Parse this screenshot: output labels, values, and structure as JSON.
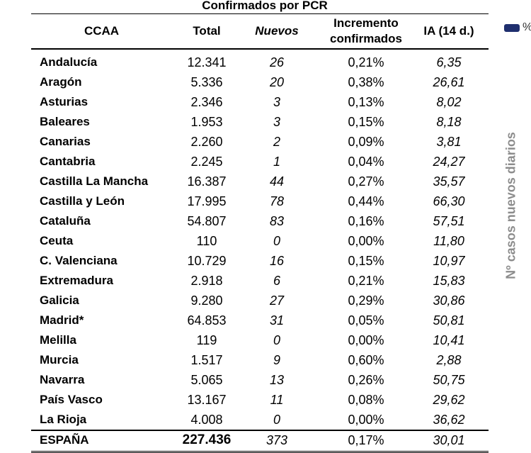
{
  "title": "Confirmados por PCR",
  "headers": {
    "ccaa": "CCAA",
    "total": "Total",
    "nuevos": "Nuevos",
    "incremento_line1": "Incremento",
    "incremento_line2": "confirmados",
    "ia": "IA (14 d.)"
  },
  "rows": [
    {
      "ccaa": "Andalucía",
      "total": "12.341",
      "nuevos": "26",
      "incremento": "0,21%",
      "ia": "6,35"
    },
    {
      "ccaa": "Aragón",
      "total": "5.336",
      "nuevos": "20",
      "incremento": "0,38%",
      "ia": "26,61"
    },
    {
      "ccaa": "Asturias",
      "total": "2.346",
      "nuevos": "3",
      "incremento": "0,13%",
      "ia": "8,02"
    },
    {
      "ccaa": "Baleares",
      "total": "1.953",
      "nuevos": "3",
      "incremento": "0,15%",
      "ia": "8,18"
    },
    {
      "ccaa": "Canarias",
      "total": "2.260",
      "nuevos": "2",
      "incremento": "0,09%",
      "ia": "3,81"
    },
    {
      "ccaa": "Cantabria",
      "total": "2.245",
      "nuevos": "1",
      "incremento": "0,04%",
      "ia": "24,27"
    },
    {
      "ccaa": "Castilla La Mancha",
      "total": "16.387",
      "nuevos": "44",
      "incremento": "0,27%",
      "ia": "35,57"
    },
    {
      "ccaa": "Castilla y León",
      "total": "17.995",
      "nuevos": "78",
      "incremento": "0,44%",
      "ia": "66,30"
    },
    {
      "ccaa": "Cataluña",
      "total": "54.807",
      "nuevos": "83",
      "incremento": "0,16%",
      "ia": "57,51"
    },
    {
      "ccaa": "Ceuta",
      "total": "110",
      "nuevos": "0",
      "incremento": "0,00%",
      "ia": "11,80"
    },
    {
      "ccaa": "C. Valenciana",
      "total": "10.729",
      "nuevos": "16",
      "incremento": "0,15%",
      "ia": "10,97"
    },
    {
      "ccaa": "Extremadura",
      "total": "2.918",
      "nuevos": "6",
      "incremento": "0,21%",
      "ia": "15,83"
    },
    {
      "ccaa": "Galicia",
      "total": "9.280",
      "nuevos": "27",
      "incremento": "0,29%",
      "ia": "30,86"
    },
    {
      "ccaa": "Madrid*",
      "total": "64.853",
      "nuevos": "31",
      "incremento": "0,05%",
      "ia": "50,81"
    },
    {
      "ccaa": "Melilla",
      "total": "119",
      "nuevos": "0",
      "incremento": "0,00%",
      "ia": "10,41"
    },
    {
      "ccaa": "Murcia",
      "total": "1.517",
      "nuevos": "9",
      "incremento": "0,60%",
      "ia": "2,88"
    },
    {
      "ccaa": "Navarra",
      "total": "5.065",
      "nuevos": "13",
      "incremento": "0,26%",
      "ia": "50,75"
    },
    {
      "ccaa": "País Vasco",
      "total": "13.167",
      "nuevos": "11",
      "incremento": "0,08%",
      "ia": "29,62"
    },
    {
      "ccaa": "La Rioja",
      "total": "4.008",
      "nuevos": "0",
      "incremento": "0,00%",
      "ia": "36,62"
    }
  ],
  "total_row": {
    "ccaa": "ESPAÑA",
    "total": "227.436",
    "nuevos": "373",
    "incremento": "0,17%",
    "ia": "30,01"
  },
  "legend": {
    "text": "%",
    "color": "#1f2f6e"
  },
  "side_axis_label": "Nº casos nuevos diarios"
}
